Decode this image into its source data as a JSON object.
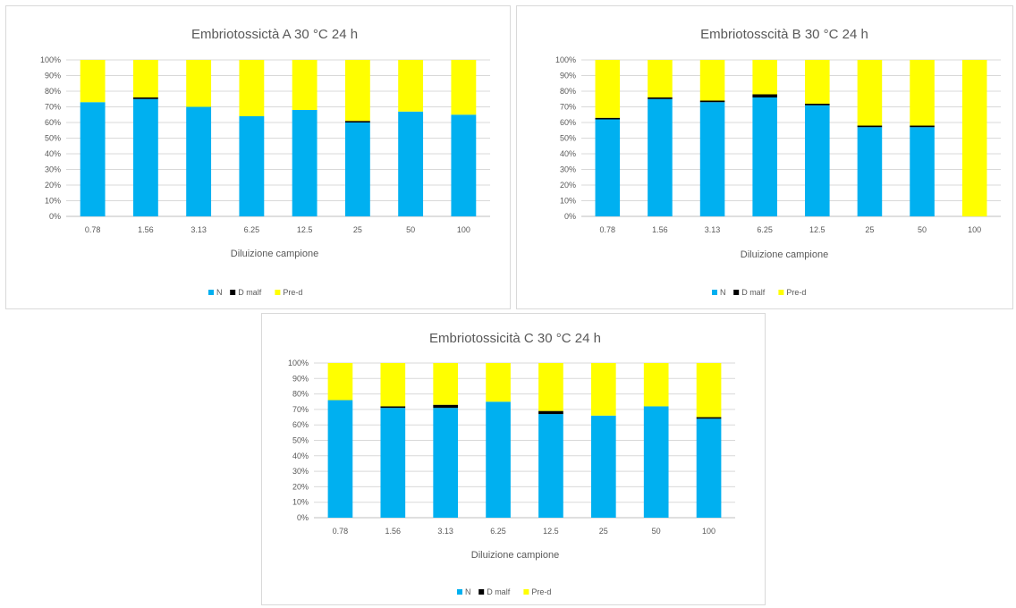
{
  "colors": {
    "N": "#00b0f0",
    "D malf": "#000000",
    "Pre-d": "#ffff00"
  },
  "chart_data": [
    {
      "type": "bar",
      "stacked": true,
      "title": "Embriotossictà A 30 °C 24 h",
      "xlabel": "Diluizione campione",
      "ylabel": "",
      "ylim": [
        0,
        100
      ],
      "ytick_labels": [
        "0%",
        "10%",
        "20%",
        "30%",
        "40%",
        "50%",
        "60%",
        "70%",
        "80%",
        "90%",
        "100%"
      ],
      "grid": true,
      "legend_position": "bottom",
      "categories": [
        "0.78",
        "1.56",
        "3.13",
        "6.25",
        "12.5",
        "25",
        "50",
        "100"
      ],
      "series": [
        {
          "name": "N",
          "values": [
            73,
            75,
            70,
            64,
            68,
            60,
            67,
            65
          ]
        },
        {
          "name": "D malf",
          "values": [
            0,
            1,
            0,
            0,
            0,
            1,
            0,
            0
          ]
        },
        {
          "name": "Pre-d",
          "values": [
            27,
            24,
            30,
            36,
            32,
            39,
            33,
            35
          ]
        }
      ]
    },
    {
      "type": "bar",
      "stacked": true,
      "title": "Embriotosscità B 30 °C 24 h",
      "xlabel": "Diluizione campione",
      "ylabel": "",
      "ylim": [
        0,
        100
      ],
      "ytick_labels": [
        "0%",
        "10%",
        "20%",
        "30%",
        "40%",
        "50%",
        "60%",
        "70%",
        "80%",
        "90%",
        "100%"
      ],
      "grid": true,
      "legend_position": "bottom",
      "categories": [
        "0.78",
        "1.56",
        "3.13",
        "6.25",
        "12.5",
        "25",
        "50",
        "100"
      ],
      "series": [
        {
          "name": "N",
          "values": [
            62,
            75,
            73,
            76,
            71,
            57,
            57,
            0
          ]
        },
        {
          "name": "D malf",
          "values": [
            1,
            1,
            1,
            2,
            1,
            1,
            1,
            0
          ]
        },
        {
          "name": "Pre-d",
          "values": [
            37,
            24,
            26,
            22,
            28,
            42,
            42,
            100
          ]
        }
      ]
    },
    {
      "type": "bar",
      "stacked": true,
      "title": "Embriotossicità C 30 °C 24 h",
      "xlabel": "Diluizione campione",
      "ylabel": "",
      "ylim": [
        0,
        100
      ],
      "ytick_labels": [
        "0%",
        "10%",
        "20%",
        "30%",
        "40%",
        "50%",
        "60%",
        "70%",
        "80%",
        "90%",
        "100%"
      ],
      "grid": true,
      "legend_position": "bottom",
      "categories": [
        "0.78",
        "1.56",
        "3.13",
        "6.25",
        "12.5",
        "25",
        "50",
        "100"
      ],
      "series": [
        {
          "name": "N",
          "values": [
            76,
            71,
            71,
            75,
            67,
            66,
            72,
            64
          ]
        },
        {
          "name": "D malf",
          "values": [
            0,
            1,
            2,
            0,
            2,
            0,
            0,
            1
          ]
        },
        {
          "name": "Pre-d",
          "values": [
            24,
            28,
            27,
            25,
            31,
            34,
            28,
            35
          ]
        }
      ]
    }
  ]
}
